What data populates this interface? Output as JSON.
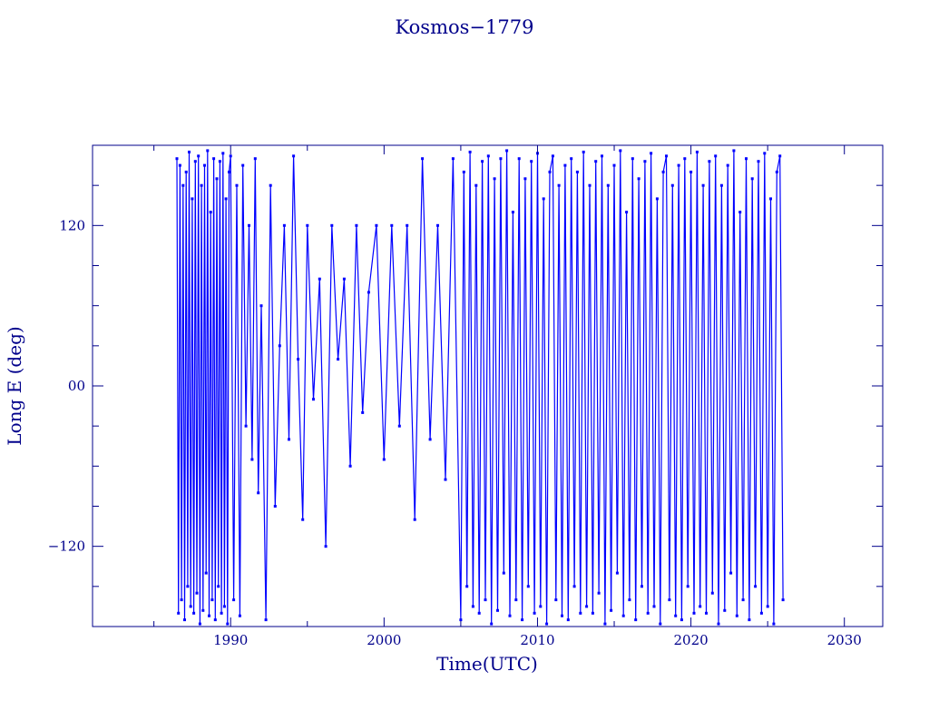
{
  "chart_data": {
    "type": "line",
    "title": "Kosmos−1779",
    "xlabel": "Time(UTC)",
    "ylabel": "Long E (deg)",
    "xlim": [
      1981,
      2032.5
    ],
    "ylim": [
      -180,
      180
    ],
    "x_ticks": [
      1990,
      2000,
      2010,
      2020,
      2030
    ],
    "x_tick_labels": [
      "1990",
      "2000",
      "2010",
      "2020",
      "2030"
    ],
    "y_ticks": [
      -120,
      0,
      120
    ],
    "y_tick_labels": [
      "−120",
      "00",
      "120"
    ],
    "grid": false,
    "color": "#0000ff",
    "axis_color": "#00008b",
    "series": [
      {
        "x": [
          1986.5,
          1986.6,
          1986.7,
          1986.8,
          1986.9,
          1987.0,
          1987.1,
          1987.2,
          1987.3,
          1987.4,
          1987.5,
          1987.6,
          1987.7,
          1987.8,
          1987.9,
          1988.0,
          1988.1,
          1988.2,
          1988.3,
          1988.4,
          1988.5,
          1988.6,
          1988.7,
          1988.8,
          1988.9,
          1989.0,
          1989.1,
          1989.2,
          1989.3,
          1989.4,
          1989.5,
          1989.6,
          1989.7,
          1989.8,
          1989.9,
          1990.0,
          1990.2,
          1990.4,
          1990.6,
          1990.8,
          1991.0,
          1991.2,
          1991.4,
          1991.6,
          1991.8,
          1992.0,
          1992.3,
          1992.6,
          1992.9,
          1993.2,
          1993.5,
          1993.8,
          1994.1,
          1994.4,
          1994.7,
          1995.0,
          1995.4,
          1995.8,
          1996.2,
          1996.6,
          1997.0,
          1997.4,
          1997.8,
          1998.2,
          1998.6,
          1999.0,
          1999.5,
          2000.0,
          2000.5,
          2001.0,
          2001.5,
          2002.0,
          2002.5,
          2003.0,
          2003.5,
          2004.0,
          2004.5,
          2005.0,
          2005.2,
          2005.4,
          2005.6,
          2005.8,
          2006.0,
          2006.2,
          2006.4,
          2006.6,
          2006.8,
          2007.0,
          2007.2,
          2007.4,
          2007.6,
          2007.8,
          2008.0,
          2008.2,
          2008.4,
          2008.6,
          2008.8,
          2009.0,
          2009.2,
          2009.4,
          2009.6,
          2009.8,
          2010.0,
          2010.2,
          2010.4,
          2010.6,
          2010.8,
          2011.0,
          2011.2,
          2011.4,
          2011.6,
          2011.8,
          2012.0,
          2012.2,
          2012.4,
          2012.6,
          2012.8,
          2013.0,
          2013.2,
          2013.4,
          2013.6,
          2013.8,
          2014.0,
          2014.2,
          2014.4,
          2014.6,
          2014.8,
          2015.0,
          2015.2,
          2015.4,
          2015.6,
          2015.8,
          2016.0,
          2016.2,
          2016.4,
          2016.6,
          2016.8,
          2017.0,
          2017.2,
          2017.4,
          2017.6,
          2017.8,
          2018.0,
          2018.2,
          2018.4,
          2018.6,
          2018.8,
          2019.0,
          2019.2,
          2019.4,
          2019.6,
          2019.8,
          2020.0,
          2020.2,
          2020.4,
          2020.6,
          2020.8,
          2021.0,
          2021.2,
          2021.4,
          2021.6,
          2021.8,
          2022.0,
          2022.2,
          2022.4,
          2022.6,
          2022.8,
          2023.0,
          2023.2,
          2023.4,
          2023.6,
          2023.8,
          2024.0,
          2024.2,
          2024.4,
          2024.6,
          2024.8,
          2025.0,
          2025.2,
          2025.4,
          2025.6,
          2025.8,
          2026.0
        ],
        "y": [
          170,
          -170,
          165,
          -160,
          150,
          -175,
          160,
          -150,
          175,
          -165,
          140,
          -170,
          168,
          -155,
          172,
          -178,
          150,
          -168,
          165,
          -140,
          176,
          -172,
          130,
          -160,
          170,
          -175,
          155,
          -150,
          168,
          -170,
          174,
          -165,
          140,
          -178,
          160,
          172,
          -160,
          150,
          -172,
          165,
          -30,
          120,
          -55,
          170,
          -80,
          60,
          -175,
          150,
          -90,
          30,
          120,
          -40,
          172,
          20,
          -100,
          120,
          -10,
          80,
          -120,
          120,
          20,
          80,
          -60,
          120,
          -20,
          70,
          120,
          -55,
          120,
          -30,
          120,
          -100,
          170,
          -40,
          120,
          -70,
          170,
          -175,
          160,
          -150,
          175,
          -165,
          150,
          -170,
          168,
          -160,
          172,
          -178,
          155,
          -168,
          170,
          -140,
          176,
          -172,
          130,
          -160,
          170,
          -175,
          155,
          -150,
          168,
          -170,
          174,
          -165,
          140,
          -178,
          160,
          172,
          -160,
          150,
          -172,
          165,
          -175,
          170,
          -150,
          160,
          -170,
          175,
          -165,
          150,
          -170,
          168,
          -155,
          172,
          -178,
          150,
          -168,
          165,
          -140,
          176,
          -172,
          130,
          -160,
          170,
          -175,
          155,
          -150,
          168,
          -170,
          174,
          -165,
          140,
          -178,
          160,
          172,
          -160,
          150,
          -172,
          165,
          -175,
          170,
          -150,
          160,
          -170,
          175,
          -165,
          150,
          -170,
          168,
          -155,
          172,
          -178,
          150,
          -168,
          165,
          -140,
          176,
          -172,
          130,
          -160,
          170,
          -175,
          155,
          -150,
          168,
          -170,
          174,
          -165,
          140,
          -178,
          160,
          172,
          -160
        ]
      }
    ]
  }
}
